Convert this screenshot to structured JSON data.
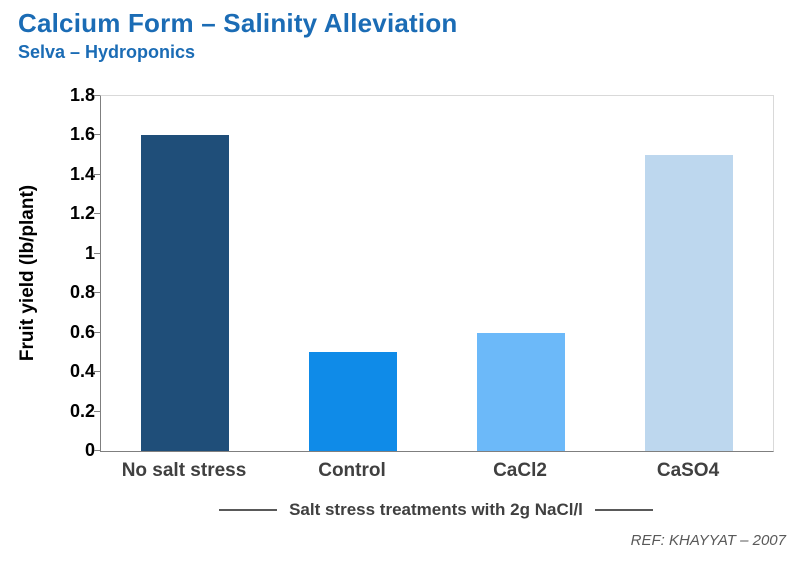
{
  "header": {
    "title": "Calcium Form – Salinity Alleviation",
    "subtitle": "Selva – Hydroponics"
  },
  "chart_data": {
    "type": "bar",
    "categories": [
      "No salt stress",
      "Control",
      "CaCl2",
      "CaSO4"
    ],
    "values": [
      1.6,
      0.5,
      0.6,
      1.5
    ],
    "bar_colors": [
      "#1F4E79",
      "#0F8BE8",
      "#6CB9F9",
      "#BDD7EE"
    ],
    "title": "Calcium Form – Salinity Alleviation",
    "subtitle": "Selva – Hydroponics",
    "xlabel": "Salt stress treatments with 2g NaCl/l",
    "ylabel": "Fruit yield (lb/plant)",
    "ylim": [
      0,
      1.8
    ],
    "yticks": [
      "0",
      "0.2",
      "0.4",
      "0.6",
      "0.8",
      "1",
      "1.2",
      "1.4",
      "1.6",
      "1.8"
    ],
    "grid": false,
    "legend": false
  },
  "footer": {
    "ref": "REF: KHAYYAT – 2007"
  },
  "colors": {
    "title_blue": "#1B6CB5",
    "axis_gray": "#7F7F7F",
    "label_gray": "#404040",
    "ref_gray": "#595959"
  }
}
